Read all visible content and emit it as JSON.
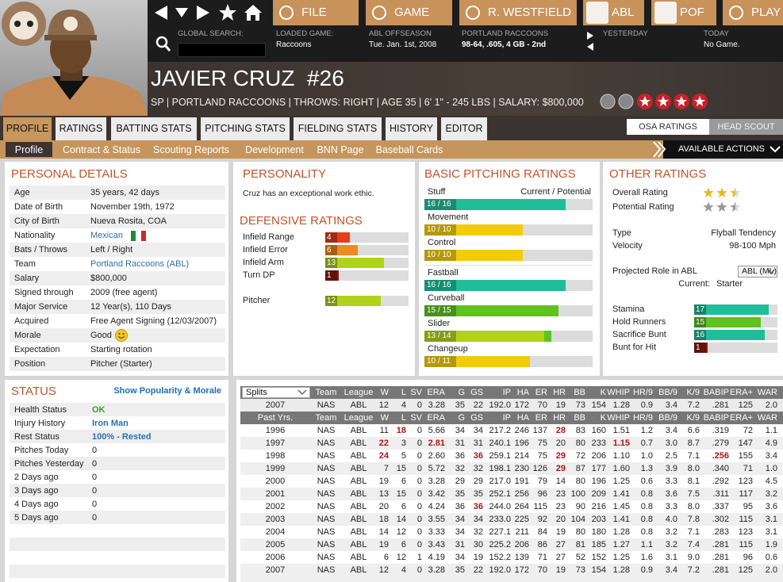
{
  "nav": {
    "buttons": [
      "FILE",
      "GAME",
      "R. WESTFIELD",
      "ABL",
      "POF",
      "PLAY"
    ],
    "search_label": "GLOBAL SEARCH:",
    "info": [
      {
        "label": "LOADED GAME:",
        "value": "Raccoons"
      },
      {
        "label": "ABL OFFSEASON",
        "value": "Tue. Jan. 1st, 2008"
      },
      {
        "label": "PORTLAND RACCOONS",
        "value": "98-64, .605, 4 GB - 2nd"
      },
      {
        "label": "YESTERDAY"
      },
      {
        "label": "TODAY",
        "value": "No Game."
      }
    ]
  },
  "player": {
    "name": "JAVIER CRUZ  #26",
    "details": "SP | PORTLAND RACCOONS | THROWS: RIGHT | AGE 35 | 6' 1\" - 245 LBS | SALARY: $800,000"
  },
  "tabs": {
    "items": [
      "PROFILE",
      "RATINGS",
      "BATTING STATS",
      "PITCHING STATS",
      "FIELDING STATS",
      "HISTORY",
      "EDITOR"
    ],
    "active": "PROFILE"
  },
  "scout": {
    "items": [
      "OSA RATINGS",
      "HEAD SCOUT"
    ],
    "active": "OSA RATINGS"
  },
  "subtabs": {
    "items": [
      "Profile",
      "Contract & Status",
      "Scouting Reports",
      "Development",
      "BNN Page",
      "Baseball Cards"
    ],
    "active": "Profile"
  },
  "actions": "AVAILABLE ACTIONS",
  "personal_details": {
    "title": "PERSONAL DETAILS",
    "rows": [
      {
        "label": "Age",
        "value": "35 years, 42 days"
      },
      {
        "label": "Date of Birth",
        "value": "November 19th, 1972"
      },
      {
        "label": "City of Birth",
        "value": "Nueva Rosita, COA"
      },
      {
        "label": "Nationality",
        "value": "Mexican"
      },
      {
        "label": "Bats / Throws",
        "value": "Left / Right"
      },
      {
        "label": "Team",
        "value": "Portland Raccoons (ABL)"
      },
      {
        "label": "Salary",
        "value": "$800,000"
      },
      {
        "label": "Signed through",
        "value": "2009 (free agent)"
      },
      {
        "label": "Major Service",
        "value": "12 Year(s), 110 Days"
      },
      {
        "label": "Acquired",
        "value": "Free Agent Signing (12/03/2007)"
      },
      {
        "label": "Morale",
        "value": "Good"
      },
      {
        "label": "Expectation",
        "value": "Starting rotation"
      },
      {
        "label": "Position",
        "value": "Pitcher (Starter)"
      }
    ]
  },
  "personality": {
    "title": "PERSONALITY",
    "text": "Cruz has an exceptional work ethic."
  },
  "defensive_ratings": {
    "title": "DEFENSIVE RATINGS",
    "rows": [
      {
        "label": "Infield Range",
        "value": 4
      },
      {
        "label": "Infield Error",
        "value": 6
      },
      {
        "label": "Infield Arm",
        "value": 13
      },
      {
        "label": "Turn DP",
        "value": 1
      },
      {
        "label": "Pitcher",
        "value": 12
      }
    ]
  },
  "basic_pitching_ratings": {
    "title": "BASIC PITCHING RATINGS",
    "header": "Current / Potential",
    "groups": [
      [
        {
          "label": "Stuff",
          "current": 16,
          "potential": 16,
          "value_label": "16 / 16"
        },
        {
          "label": "Movement",
          "current": 10,
          "potential": 10,
          "value_label": "10 / 10"
        },
        {
          "label": "Control",
          "current": 10,
          "potential": 10,
          "value_label": "10 / 10"
        }
      ],
      [
        {
          "label": "Fastball",
          "current": 16,
          "potential": 16,
          "value_label": "16 / 16"
        },
        {
          "label": "Curveball",
          "current": 15,
          "potential": 15,
          "value_label": "15 / 15"
        },
        {
          "label": "Slider",
          "current": 13,
          "potential": 14,
          "value_label": "13 / 14"
        },
        {
          "label": "Changeup",
          "current": 10,
          "potential": 11,
          "value_label": "10 / 11"
        }
      ]
    ]
  },
  "other_ratings": {
    "title": "OTHER RATINGS",
    "overall": {
      "label": "Overall Rating",
      "stars": 2.5
    },
    "potential": {
      "label": "Potential Rating",
      "stars": 2.5
    },
    "type": {
      "label": "Type",
      "value": "Flyball Tendency"
    },
    "velocity": {
      "label": "Velocity",
      "value": "98-100 Mph"
    },
    "projected_role": {
      "label": "Projected Role in ABL",
      "league": "ABL (ML)",
      "current_label": "Current:",
      "current": "Starter"
    },
    "rows": [
      {
        "label": "Stamina",
        "value": 17
      },
      {
        "label": "Hold Runners",
        "value": 15
      },
      {
        "label": "Sacrifice Bunt",
        "value": 16
      },
      {
        "label": "Bunt for Hit",
        "value": 1
      }
    ]
  },
  "status": {
    "title": "STATUS",
    "link": "Show Popularity & Morale",
    "rows": [
      {
        "label": "Health Status",
        "value": "OK"
      },
      {
        "label": "Injury History",
        "value": "Iron Man"
      },
      {
        "label": "Rest Status",
        "value": "100% - Rested"
      },
      {
        "label": "Pitches Today",
        "value": "0"
      },
      {
        "label": "Pitches Yesterday",
        "value": "0"
      },
      {
        "label": "2 Days ago",
        "value": "0"
      },
      {
        "label": "3 Days ago",
        "value": "0"
      },
      {
        "label": "4 Days ago",
        "value": "0"
      },
      {
        "label": "5 Days ago",
        "value": "0"
      }
    ]
  },
  "stats": {
    "splits_label": "Splits",
    "past_label": "Past Yrs.",
    "columns": [
      "Team",
      "League",
      "W",
      "L",
      "SV",
      "ERA",
      "G",
      "GS",
      "IP",
      "HA",
      "ER",
      "HR",
      "BB",
      "K",
      "WHIP",
      "HR/9",
      "BB/9",
      "K/9",
      "BABIP",
      "ERA+",
      "WAR"
    ],
    "current": {
      "cells": [
        "2007",
        "NAS",
        "ABL",
        "12",
        "4",
        "0",
        "3.28",
        "35",
        "22",
        "192.0",
        "172",
        "70",
        "19",
        "73",
        "154",
        "1.28",
        "0.9",
        "3.4",
        "7.2",
        ".281",
        "125",
        "2.0"
      ]
    },
    "rows": [
      {
        "cells": [
          "1996",
          "NAS",
          "ABL",
          "11",
          "18",
          "0",
          "5.66",
          "34",
          "34",
          "217.2",
          "246",
          "137",
          "28",
          "83",
          "160",
          "1.51",
          "1.2",
          "3.4",
          "6.6",
          ".319",
          "72",
          "1.1"
        ],
        "leaders": [
          "L",
          "HR"
        ]
      },
      {
        "cells": [
          "1997",
          "NAS",
          "ABL",
          "22",
          "3",
          "0",
          "2.81",
          "31",
          "31",
          "240.1",
          "196",
          "75",
          "20",
          "80",
          "233",
          "1.15",
          "0.7",
          "3.0",
          "8.7",
          ".279",
          "147",
          "4.9"
        ],
        "leaders": [
          "W",
          "ERA",
          "WHIP"
        ]
      },
      {
        "cells": [
          "1998",
          "NAS",
          "ABL",
          "24",
          "5",
          "0",
          "2.60",
          "36",
          "36",
          "259.1",
          "214",
          "75",
          "29",
          "72",
          "206",
          "1.10",
          "1.0",
          "2.5",
          "7.1",
          ".256",
          "155",
          "3.4"
        ],
        "leaders": [
          "W",
          "GS",
          "HR",
          "BABIP"
        ]
      },
      {
        "cells": [
          "1999",
          "NAS",
          "ABL",
          "7",
          "15",
          "0",
          "5.72",
          "32",
          "32",
          "198.1",
          "230",
          "126",
          "29",
          "87",
          "177",
          "1.60",
          "1.3",
          "3.9",
          "8.0",
          ".340",
          "71",
          "1.0"
        ],
        "leaders": [
          "HR"
        ]
      },
      {
        "cells": [
          "2000",
          "NAS",
          "ABL",
          "19",
          "6",
          "0",
          "3.28",
          "29",
          "29",
          "217.0",
          "191",
          "79",
          "14",
          "80",
          "196",
          "1.25",
          "0.6",
          "3.3",
          "8.1",
          ".292",
          "123",
          "4.5"
        ]
      },
      {
        "cells": [
          "2001",
          "NAS",
          "ABL",
          "13",
          "15",
          "0",
          "3.42",
          "35",
          "35",
          "252.1",
          "256",
          "96",
          "23",
          "100",
          "209",
          "1.41",
          "0.8",
          "3.6",
          "7.5",
          ".311",
          "117",
          "3.2"
        ]
      },
      {
        "cells": [
          "2002",
          "NAS",
          "ABL",
          "20",
          "6",
          "0",
          "4.24",
          "36",
          "36",
          "244.0",
          "264",
          "115",
          "23",
          "90",
          "216",
          "1.45",
          "0.8",
          "3.3",
          "8.0",
          ".337",
          "95",
          "3.6"
        ],
        "leaders": [
          "GS"
        ]
      },
      {
        "cells": [
          "2003",
          "NAS",
          "ABL",
          "18",
          "14",
          "0",
          "3.55",
          "34",
          "34",
          "233.0",
          "225",
          "92",
          "20",
          "104",
          "203",
          "1.41",
          "0.8",
          "4.0",
          "7.8",
          ".302",
          "115",
          "3.1"
        ]
      },
      {
        "cells": [
          "2004",
          "NAS",
          "ABL",
          "14",
          "12",
          "0",
          "3.33",
          "34",
          "32",
          "227.1",
          "211",
          "84",
          "19",
          "80",
          "180",
          "1.28",
          "0.8",
          "3.2",
          "7.1",
          ".283",
          "123",
          "3.1"
        ]
      },
      {
        "cells": [
          "2005",
          "NAS",
          "ABL",
          "19",
          "6",
          "0",
          "3.43",
          "31",
          "30",
          "225.2",
          "206",
          "86",
          "27",
          "81",
          "185",
          "1.27",
          "1.1",
          "3.2",
          "7.4",
          ".281",
          "115",
          "1.9"
        ]
      },
      {
        "cells": [
          "2006",
          "NAS",
          "ABL",
          "6",
          "12",
          "1",
          "4.19",
          "34",
          "19",
          "152.2",
          "139",
          "71",
          "27",
          "52",
          "152",
          "1.25",
          "1.6",
          "3.1",
          "9.0",
          ".281",
          "96",
          "0.6"
        ]
      },
      {
        "cells": [
          "2007",
          "NAS",
          "ABL",
          "12",
          "4",
          "0",
          "3.28",
          "35",
          "22",
          "192.0",
          "172",
          "70",
          "19",
          "73",
          "154",
          "1.28",
          "0.9",
          "3.4",
          "7.2",
          ".281",
          "125",
          "2.0"
        ]
      }
    ]
  }
}
